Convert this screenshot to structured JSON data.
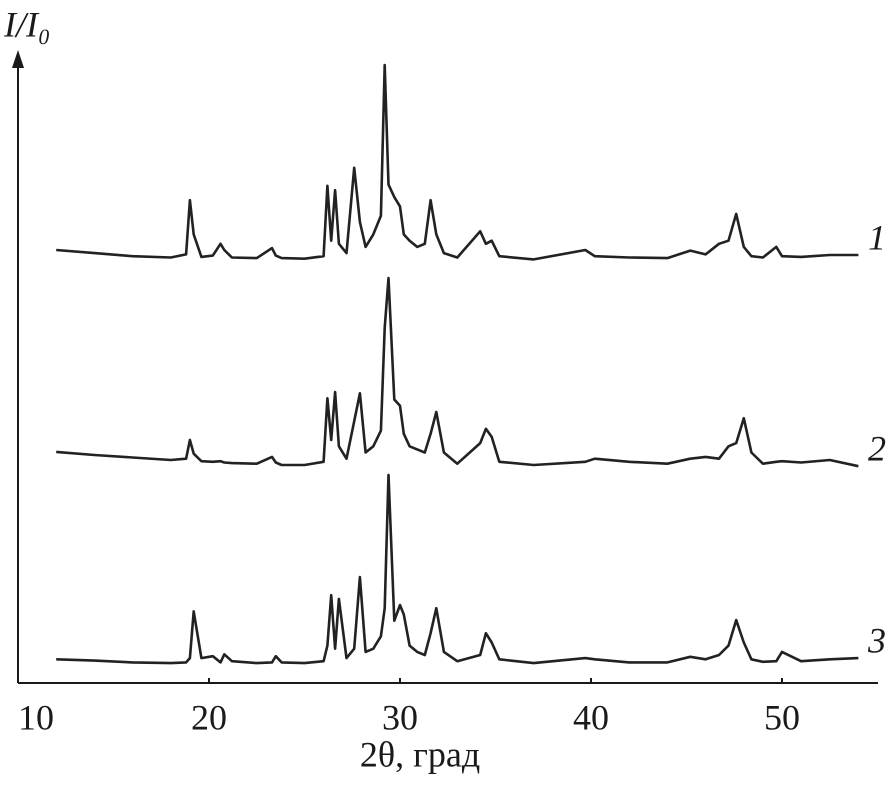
{
  "chart_data": {
    "type": "line",
    "y_label": "I/I₀",
    "x_label": "2θ, град",
    "xlim": [
      10,
      55
    ],
    "xticks": [
      10,
      20,
      30,
      40,
      50
    ],
    "ylim": [
      0,
      100
    ],
    "color": "#222222",
    "x": [
      12,
      14,
      16,
      18,
      18.8,
      19.0,
      19.2,
      19.6,
      20.2,
      20.6,
      20.8,
      21.2,
      22.5,
      23.3,
      23.5,
      23.8,
      25,
      26.0,
      26.2,
      26.4,
      26.6,
      26.8,
      27.2,
      27.6,
      27.9,
      28.2,
      28.6,
      29.0,
      29.2,
      29.4,
      29.7,
      30.0,
      30.2,
      30.5,
      30.9,
      31.3,
      31.6,
      31.9,
      32.3,
      33,
      34.2,
      34.5,
      34.8,
      35.2,
      37,
      39.7,
      40.2,
      42,
      44,
      45.2,
      46,
      46.7,
      47.2,
      47.6,
      48.0,
      48.4,
      49,
      49.7,
      50.0,
      51,
      52.5,
      54
    ],
    "series": [
      {
        "name": "1",
        "color": "#222222",
        "values": [
          69.5,
          69.0,
          68.5,
          68.3,
          68.8,
          77.5,
          72.0,
          68.4,
          68.6,
          70.5,
          69.5,
          68.3,
          68.2,
          69.8,
          68.6,
          68.2,
          68.1,
          68.5,
          79.8,
          71.0,
          79.1,
          70.5,
          69.0,
          82.7,
          74.0,
          70.0,
          72.0,
          75.0,
          99.2,
          80.0,
          78.0,
          76.5,
          72.0,
          71.0,
          70.0,
          70.5,
          77.5,
          72.0,
          69.0,
          68.3,
          72.5,
          70.5,
          71.0,
          68.5,
          68.0,
          69.5,
          68.5,
          68.3,
          68.2,
          69.4,
          68.8,
          70.5,
          71.0,
          75.3,
          70.0,
          68.5,
          68.3,
          70.0,
          68.5,
          68.4,
          68.7,
          68.7
        ]
      },
      {
        "name": "2",
        "color": "#222222",
        "values": [
          37.1,
          36.6,
          36.2,
          35.8,
          36.0,
          39.0,
          36.8,
          35.6,
          35.5,
          35.6,
          35.4,
          35.3,
          35.2,
          36.3,
          35.4,
          35.0,
          35.0,
          35.5,
          45.7,
          39.0,
          46.7,
          38.0,
          36.0,
          42.0,
          46.5,
          37.0,
          38.0,
          40.5,
          57.0,
          65.0,
          45.5,
          44.5,
          40.0,
          38.0,
          37.5,
          37.0,
          40.0,
          43.5,
          37.0,
          35.2,
          38.5,
          40.8,
          39.5,
          35.5,
          35.0,
          35.5,
          36.0,
          35.5,
          35.2,
          36.0,
          36.3,
          36.0,
          38.0,
          38.5,
          42.5,
          37.0,
          35.2,
          35.5,
          35.6,
          35.4,
          35.8,
          34.8
        ]
      },
      {
        "name": "3",
        "color": "#222222",
        "values": [
          3.8,
          3.6,
          3.3,
          3.2,
          3.3,
          4.0,
          11.5,
          4.0,
          4.3,
          3.3,
          4.6,
          3.5,
          3.2,
          3.3,
          4.3,
          3.3,
          3.2,
          3.5,
          6.0,
          14.1,
          5.5,
          13.5,
          4.0,
          5.5,
          17.0,
          5.0,
          5.5,
          7.5,
          12.0,
          33.4,
          10.0,
          12.5,
          11.0,
          6.0,
          5.0,
          4.5,
          8.0,
          12.0,
          5.0,
          3.5,
          4.5,
          8.0,
          6.5,
          3.8,
          3.2,
          4.0,
          3.8,
          3.3,
          3.3,
          4.2,
          3.8,
          4.5,
          6.0,
          10.1,
          6.5,
          3.8,
          3.4,
          3.5,
          5.0,
          3.5,
          3.8,
          4.0
        ]
      }
    ]
  }
}
